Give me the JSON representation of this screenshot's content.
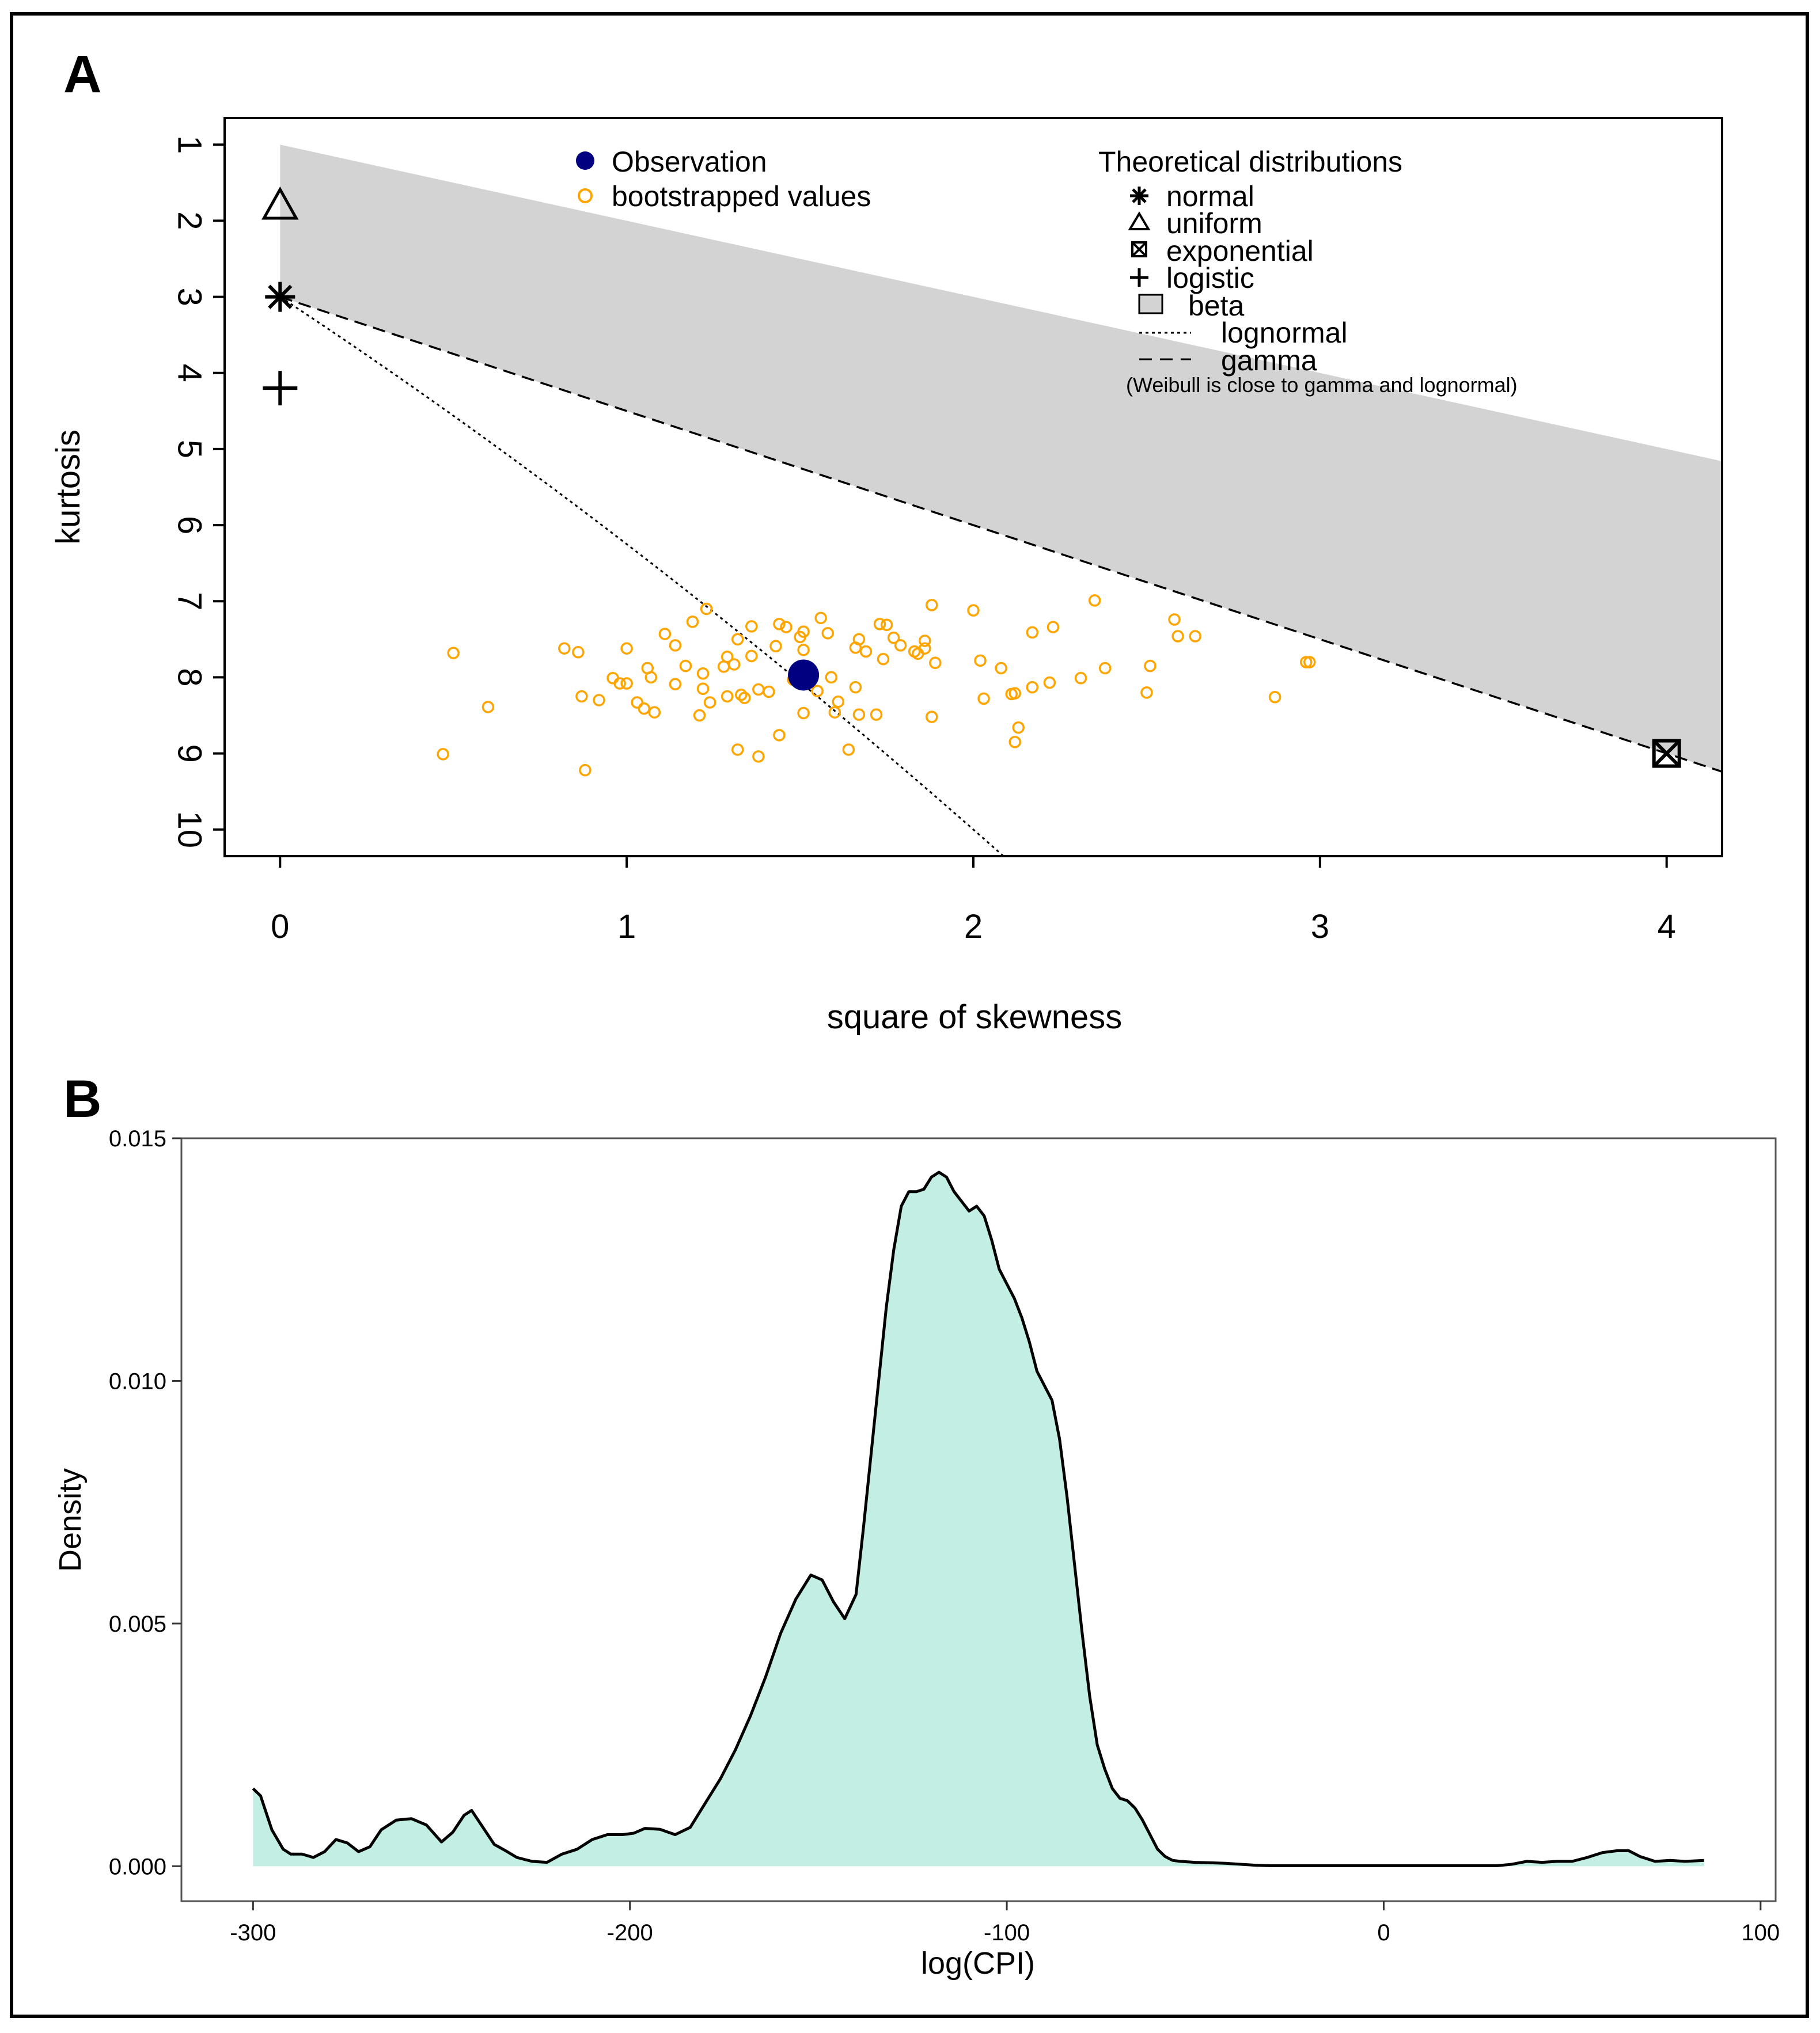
{
  "colors": {
    "observation": "#000080",
    "bootstrap": "#FFA500",
    "beta_fill": "#D3D3D3",
    "density_fill": "#C3EEE4",
    "density_line": "#000000"
  },
  "panel_a": {
    "label": "A",
    "xlabel": "square of skewness",
    "ylabel": "kurtosis",
    "legend_left": {
      "observation": "Observation",
      "bootstrap": "bootstrapped values"
    },
    "legend_right": {
      "title": "Theoretical distributions",
      "normal": "normal",
      "uniform": "uniform",
      "exponential": "exponential",
      "logistic": "logistic",
      "beta": "beta",
      "lognormal": "lognormal",
      "gamma": "gamma",
      "note": "(Weibull is close to gamma and lognormal)"
    }
  },
  "panel_b": {
    "label": "B",
    "xlabel": "log(CPI)",
    "ylabel": "Density"
  },
  "chart_data": [
    {
      "type": "scatter",
      "title": "A",
      "xlabel": "square of skewness",
      "ylabel": "kurtosis",
      "xlim": [
        -0.16,
        4.16
      ],
      "ylim": [
        10.35,
        0.65
      ],
      "y_reversed": true,
      "xticks": [
        0,
        1,
        2,
        3,
        4
      ],
      "yticks": [
        1,
        2,
        3,
        4,
        5,
        6,
        7,
        8,
        9,
        10
      ],
      "observation": {
        "x": 1.51,
        "y": 7.97
      },
      "theoretical_points": [
        {
          "name": "normal",
          "x": 0,
          "y": 3
        },
        {
          "name": "uniform",
          "x": 0,
          "y": 1.8
        },
        {
          "name": "exponential",
          "x": 4,
          "y": 9
        },
        {
          "name": "logistic",
          "x": 0,
          "y": 4.2
        }
      ],
      "beta_region": {
        "upper": "y = x + 1",
        "lower": "y = 1.5x + 3",
        "x_from": 0
      },
      "lognormal_line": "y = 3 + 3x + 0.25x^2 (approx.)",
      "gamma_line": "y = 3 + 1.5x",
      "bootstrap": [
        [
          0.5,
          7.68
        ],
        [
          0.6,
          8.39
        ],
        [
          0.47,
          9.01
        ],
        [
          0.82,
          7.62
        ],
        [
          0.86,
          7.67
        ],
        [
          0.87,
          8.25
        ],
        [
          0.88,
          9.22
        ],
        [
          0.92,
          8.3
        ],
        [
          0.96,
          8.01
        ],
        [
          0.98,
          8.08
        ],
        [
          1.0,
          8.08
        ],
        [
          1.0,
          7.62
        ],
        [
          1.03,
          8.33
        ],
        [
          1.05,
          8.41
        ],
        [
          1.06,
          7.88
        ],
        [
          1.07,
          8.0
        ],
        [
          1.08,
          8.46
        ],
        [
          1.11,
          7.43
        ],
        [
          1.14,
          8.09
        ],
        [
          1.14,
          7.58
        ],
        [
          1.17,
          7.85
        ],
        [
          1.19,
          7.27
        ],
        [
          1.21,
          8.5
        ],
        [
          1.22,
          7.95
        ],
        [
          1.22,
          8.15
        ],
        [
          1.23,
          7.1
        ],
        [
          1.24,
          8.33
        ],
        [
          1.28,
          7.86
        ],
        [
          1.29,
          7.73
        ],
        [
          1.29,
          8.25
        ],
        [
          1.31,
          7.83
        ],
        [
          1.32,
          7.5
        ],
        [
          1.32,
          8.95
        ],
        [
          1.33,
          8.23
        ],
        [
          1.34,
          8.27
        ],
        [
          1.36,
          7.72
        ],
        [
          1.36,
          7.33
        ],
        [
          1.38,
          8.16
        ],
        [
          1.38,
          9.04
        ],
        [
          1.41,
          8.19
        ],
        [
          1.43,
          7.59
        ],
        [
          1.44,
          8.76
        ],
        [
          1.44,
          7.3
        ],
        [
          1.46,
          7.34
        ],
        [
          1.48,
          8.03
        ],
        [
          1.51,
          7.64
        ],
        [
          1.5,
          7.47
        ],
        [
          1.51,
          7.4
        ],
        [
          1.51,
          8.47
        ],
        [
          1.55,
          8.18
        ],
        [
          1.56,
          7.22
        ],
        [
          1.58,
          7.42
        ],
        [
          1.59,
          8.0
        ],
        [
          1.6,
          8.46
        ],
        [
          1.61,
          8.32
        ],
        [
          1.64,
          8.95
        ],
        [
          1.66,
          8.13
        ],
        [
          1.66,
          7.61
        ],
        [
          1.67,
          8.49
        ],
        [
          1.67,
          7.5
        ],
        [
          1.69,
          7.66
        ],
        [
          1.72,
          8.49
        ],
        [
          1.73,
          7.3
        ],
        [
          1.74,
          7.76
        ],
        [
          1.75,
          7.31
        ],
        [
          1.77,
          7.48
        ],
        [
          1.79,
          7.58
        ],
        [
          1.83,
          7.66
        ],
        [
          1.84,
          7.69
        ],
        [
          1.86,
          7.62
        ],
        [
          1.86,
          7.52
        ],
        [
          1.88,
          8.52
        ],
        [
          1.88,
          7.05
        ],
        [
          1.89,
          7.81
        ],
        [
          2.0,
          7.12
        ],
        [
          2.02,
          7.78
        ],
        [
          2.03,
          8.28
        ],
        [
          2.08,
          7.88
        ],
        [
          2.11,
          8.22
        ],
        [
          2.12,
          8.21
        ],
        [
          2.12,
          8.85
        ],
        [
          2.13,
          8.66
        ],
        [
          2.17,
          8.13
        ],
        [
          2.17,
          7.41
        ],
        [
          2.22,
          8.07
        ],
        [
          2.23,
          7.34
        ],
        [
          2.31,
          8.01
        ],
        [
          2.35,
          6.99
        ],
        [
          2.38,
          7.88
        ],
        [
          2.5,
          8.2
        ],
        [
          2.51,
          7.85
        ],
        [
          2.58,
          7.24
        ],
        [
          2.59,
          7.46
        ],
        [
          2.64,
          7.46
        ],
        [
          2.87,
          8.26
        ],
        [
          2.96,
          7.8
        ],
        [
          2.97,
          7.8
        ]
      ]
    },
    {
      "type": "area",
      "title": "B",
      "xlabel": "log(CPI)",
      "ylabel": "Density",
      "xlim": [
        -319,
        104
      ],
      "ylim": [
        -0.00072,
        0.015
      ],
      "xticks": [
        -300,
        -200,
        -100,
        0,
        100
      ],
      "yticks": [
        0.0,
        0.005,
        0.01,
        0.015
      ],
      "ytick_labels": [
        "0.000",
        "0.005",
        "0.010",
        "0.015"
      ],
      "xtick_labels": [
        "-300",
        "-200",
        "-100",
        "0",
        "100"
      ],
      "series": [
        {
          "name": "density",
          "x": [
            -300,
            -298,
            -295,
            -292,
            -290,
            -287,
            -284,
            -281,
            -278,
            -275,
            -272,
            -269,
            -266,
            -262,
            -258,
            -254,
            -250,
            -247,
            -244,
            -242,
            -239,
            -236,
            -233,
            -230,
            -226,
            -222,
            -218,
            -214,
            -210,
            -206,
            -202,
            -199,
            -196,
            -192,
            -188,
            -184,
            -180,
            -176,
            -172,
            -168,
            -164,
            -160,
            -156,
            -152,
            -149,
            -146,
            -143,
            -140,
            -138,
            -136,
            -134,
            -132,
            -130,
            -128,
            -126,
            -124,
            -122,
            -120,
            -118,
            -116,
            -114,
            -112,
            -110,
            -108,
            -106,
            -104,
            -102,
            -100,
            -98,
            -96,
            -94,
            -92,
            -90,
            -88,
            -86,
            -84,
            -82,
            -80,
            -78,
            -76,
            -74,
            -72,
            -70,
            -68,
            -66,
            -64,
            -62,
            -60,
            -58,
            -56,
            -54,
            -50,
            -46,
            -42,
            -38,
            -34,
            -30,
            -25,
            -20,
            -10,
            0,
            10,
            20,
            30,
            34,
            38,
            42,
            46,
            50,
            54,
            58,
            62,
            65,
            68,
            72,
            76,
            80,
            85
          ],
          "values": [
            0.0016,
            0.00145,
            0.00075,
            0.00035,
            0.00025,
            0.00025,
            0.00018,
            0.0003,
            0.00055,
            0.00048,
            0.0003,
            0.0004,
            0.00075,
            0.00095,
            0.00098,
            0.00085,
            0.0005,
            0.0007,
            0.00105,
            0.00115,
            0.0008,
            0.00045,
            0.00032,
            0.00018,
            0.0001,
            8e-05,
            0.00025,
            0.00035,
            0.00055,
            0.00065,
            0.00065,
            0.00068,
            0.00078,
            0.00076,
            0.00065,
            0.0008,
            0.0013,
            0.0018,
            0.0024,
            0.0031,
            0.0039,
            0.0048,
            0.0055,
            0.006,
            0.0059,
            0.00545,
            0.0051,
            0.0056,
            0.007,
            0.0085,
            0.01,
            0.0115,
            0.0127,
            0.0136,
            0.0139,
            0.0139,
            0.01395,
            0.0142,
            0.0143,
            0.0142,
            0.0139,
            0.0137,
            0.0135,
            0.0136,
            0.0134,
            0.0129,
            0.0123,
            0.012,
            0.0117,
            0.0113,
            0.0108,
            0.0102,
            0.0099,
            0.0096,
            0.0088,
            0.0076,
            0.0062,
            0.0048,
            0.0035,
            0.0025,
            0.002,
            0.0016,
            0.0014,
            0.00135,
            0.0012,
            0.00095,
            0.00065,
            0.00035,
            0.0002,
            0.00012,
            0.0001,
            8e-05,
            7e-05,
            6e-05,
            4e-05,
            2e-05,
            1e-05,
            1e-05,
            1e-05,
            1e-05,
            1e-05,
            1e-05,
            1e-05,
            1e-05,
            4e-05,
            0.0001,
            8e-05,
            0.0001,
            0.0001,
            0.00018,
            0.00028,
            0.00032,
            0.00032,
            0.0002,
            0.0001,
            0.00012,
            0.0001,
            0.00012
          ]
        }
      ]
    }
  ]
}
